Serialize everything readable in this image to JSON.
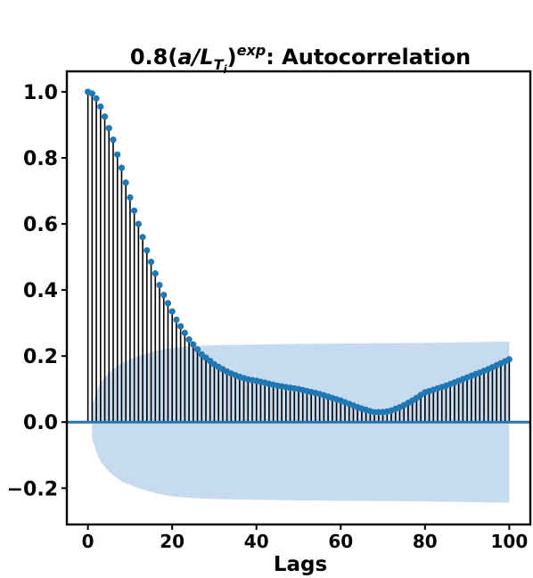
{
  "chart_data": {
    "type": "acf",
    "title_parts": [
      {
        "text": "0.8(",
        "style": "normal"
      },
      {
        "text": "a/L",
        "style": "italic"
      },
      {
        "text": "T",
        "style": "sub"
      },
      {
        "text": "i",
        "style": "subsub"
      },
      {
        "text": ")",
        "style": "normal"
      },
      {
        "text": "exp",
        "style": "sup"
      },
      {
        "text": ": Autocorrelation",
        "style": "normal"
      }
    ],
    "xlabel": "Lags",
    "x": [
      0,
      1,
      2,
      3,
      4,
      5,
      6,
      7,
      8,
      9,
      10,
      11,
      12,
      13,
      14,
      15,
      16,
      17,
      18,
      19,
      20,
      21,
      22,
      23,
      24,
      25,
      26,
      27,
      28,
      29,
      30,
      31,
      32,
      33,
      34,
      35,
      36,
      37,
      38,
      39,
      40,
      41,
      42,
      43,
      44,
      45,
      46,
      47,
      48,
      49,
      50,
      51,
      52,
      53,
      54,
      55,
      56,
      57,
      58,
      59,
      60,
      61,
      62,
      63,
      64,
      65,
      66,
      67,
      68,
      69,
      70,
      71,
      72,
      73,
      74,
      75,
      76,
      77,
      78,
      79,
      80,
      81,
      82,
      83,
      84,
      85,
      86,
      87,
      88,
      89,
      90,
      91,
      92,
      93,
      94,
      95,
      96,
      97,
      98,
      99,
      100
    ],
    "values": [
      1.0,
      0.995,
      0.98,
      0.955,
      0.925,
      0.89,
      0.855,
      0.81,
      0.77,
      0.725,
      0.68,
      0.64,
      0.6,
      0.56,
      0.52,
      0.485,
      0.45,
      0.415,
      0.385,
      0.36,
      0.335,
      0.31,
      0.29,
      0.27,
      0.25,
      0.235,
      0.22,
      0.205,
      0.195,
      0.185,
      0.175,
      0.167,
      0.16,
      0.153,
      0.147,
      0.142,
      0.137,
      0.133,
      0.129,
      0.127,
      0.125,
      0.122,
      0.119,
      0.116,
      0.113,
      0.11,
      0.108,
      0.106,
      0.104,
      0.102,
      0.1,
      0.097,
      0.094,
      0.091,
      0.088,
      0.085,
      0.081,
      0.077,
      0.073,
      0.069,
      0.065,
      0.06,
      0.055,
      0.05,
      0.045,
      0.041,
      0.037,
      0.033,
      0.03,
      0.03,
      0.03,
      0.032,
      0.035,
      0.04,
      0.045,
      0.051,
      0.058,
      0.065,
      0.073,
      0.082,
      0.09,
      0.094,
      0.098,
      0.102,
      0.106,
      0.11,
      0.115,
      0.12,
      0.125,
      0.13,
      0.135,
      0.14,
      0.145,
      0.15,
      0.155,
      0.16,
      0.166,
      0.172,
      0.178,
      0.184,
      0.19
    ],
    "stem_color": "#000000",
    "marker_color": "#1f77b4",
    "zero_line_color": "#1f77b4",
    "band_color": "#c6dbef",
    "confidence_band": {
      "x": [
        1,
        2,
        3,
        5,
        8,
        12,
        16,
        20,
        25,
        30,
        40,
        50,
        60,
        70,
        80,
        90,
        100
      ],
      "upper": [
        0.05,
        0.09,
        0.12,
        0.15,
        0.18,
        0.2,
        0.215,
        0.225,
        0.23,
        0.233,
        0.235,
        0.237,
        0.238,
        0.239,
        0.24,
        0.242,
        0.244
      ],
      "lower": [
        -0.05,
        -0.09,
        -0.12,
        -0.15,
        -0.18,
        -0.2,
        -0.215,
        -0.225,
        -0.23,
        -0.233,
        -0.235,
        -0.237,
        -0.238,
        -0.239,
        -0.24,
        -0.242,
        -0.244
      ]
    },
    "xlim": [
      -5,
      105
    ],
    "ylim": [
      -0.31,
      1.062
    ],
    "xticks": [
      0,
      20,
      40,
      60,
      80,
      100
    ],
    "yticks": [
      {
        "value": -0.2,
        "label": "−0.2"
      },
      {
        "value": 0,
        "label": "0.0"
      },
      {
        "value": 0.2,
        "label": "0.2"
      },
      {
        "value": 0.4,
        "label": "0.4"
      },
      {
        "value": 0.6,
        "label": "0.6"
      },
      {
        "value": 0.8,
        "label": "0.8"
      },
      {
        "value": 1,
        "label": "1.0"
      }
    ]
  }
}
